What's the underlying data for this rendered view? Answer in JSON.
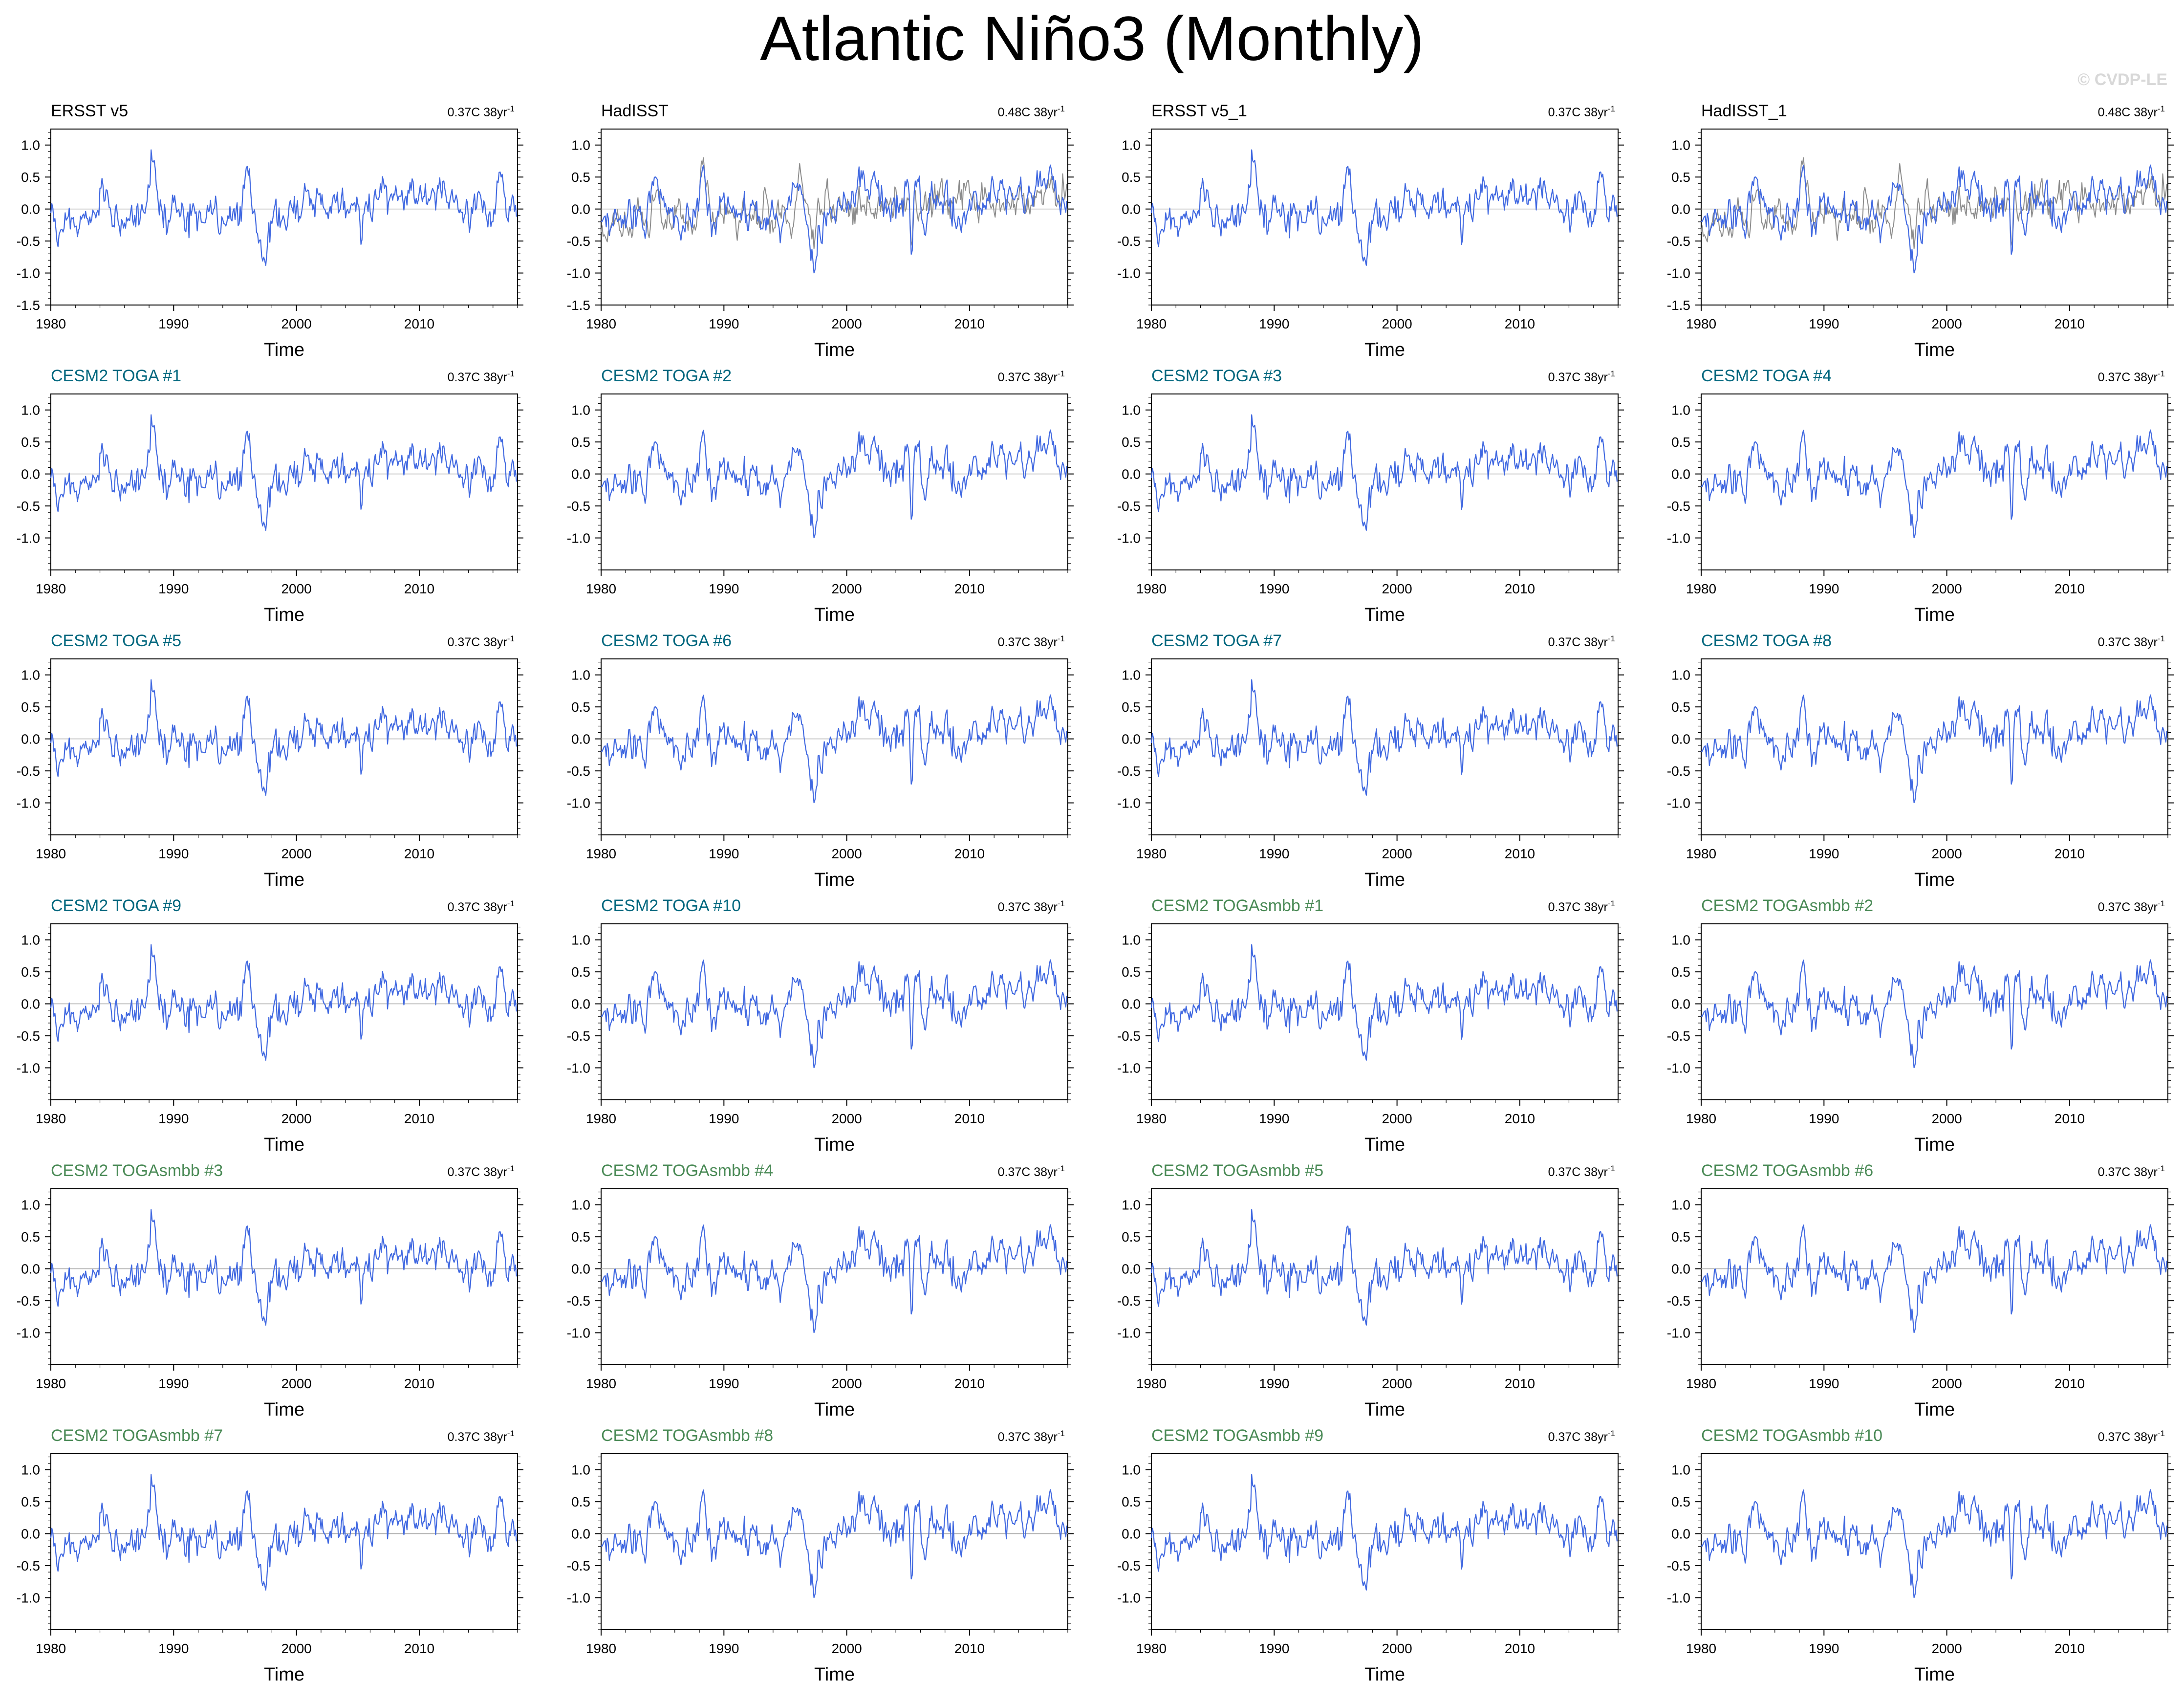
{
  "page": {
    "title": "Atlantic Niño3 (Monthly)",
    "watermark": "© CVDP-LE",
    "colors": {
      "model_line": "#4169e1",
      "obs_line": "#8c8c8c",
      "zero_line": "#a8a8a8",
      "obs_title": "#000000",
      "toga_title": "#00677e",
      "togasmbb_title": "#4a8a56"
    }
  },
  "chart_data": [
    {
      "type": "line",
      "title": "ERSST v5",
      "trend_label": "0.37C 38yr",
      "title_group": "obs",
      "xlabel": "Time",
      "xlim": [
        1980,
        2018
      ],
      "ylim": [
        -1.5,
        1.25
      ],
      "yticks": [
        -1.5,
        -1.0,
        -0.5,
        0.0,
        0.5,
        1.0
      ],
      "xticks": [
        1980,
        1990,
        2000,
        2010
      ],
      "series": [
        {
          "name": "ERSST v5",
          "color": "#4169e1"
        }
      ]
    },
    {
      "type": "line",
      "title": "HadISST",
      "trend_label": "0.48C 38yr",
      "title_group": "obs",
      "xlabel": "Time",
      "xlim": [
        1980,
        2018
      ],
      "ylim": [
        -1.5,
        1.25
      ],
      "yticks": [
        -1.5,
        -1.0,
        -0.5,
        0.0,
        0.5,
        1.0
      ],
      "xticks": [
        1980,
        1990,
        2000,
        2010
      ],
      "series": [
        {
          "color": "#8c8c8c"
        },
        {
          "name": "HadISST",
          "color": "#4169e1"
        }
      ]
    },
    {
      "type": "line",
      "title": "ERSST v5_1",
      "trend_label": "0.37C 38yr",
      "title_group": "obs",
      "xlabel": "Time",
      "xlim": [
        1980,
        2018
      ],
      "ylim": [
        -1.5,
        1.25
      ],
      "yticks": [
        -1.0,
        -0.5,
        0.0,
        0.5,
        1.0
      ],
      "xticks": [
        1980,
        1990,
        2000,
        2010
      ],
      "series": [
        {
          "name": "ERSST v5_1",
          "color": "#4169e1"
        }
      ]
    },
    {
      "type": "line",
      "title": "HadISST_1",
      "trend_label": "0.48C 38yr",
      "title_group": "obs",
      "xlabel": "Time",
      "xlim": [
        1980,
        2018
      ],
      "ylim": [
        -1.5,
        1.25
      ],
      "yticks": [
        -1.5,
        -1.0,
        -0.5,
        0.0,
        0.5,
        1.0
      ],
      "xticks": [
        1980,
        1990,
        2000,
        2010
      ],
      "series": [
        {
          "color": "#8c8c8c"
        },
        {
          "name": "HadISST_1",
          "color": "#4169e1"
        }
      ]
    },
    {
      "type": "line",
      "title": "CESM2 TOGA #1",
      "trend_label": "0.37C 38yr",
      "title_group": "toga",
      "xlabel": "Time",
      "xlim": [
        1980,
        2018
      ],
      "ylim": [
        -1.5,
        1.25
      ],
      "yticks": [
        -1.0,
        -0.5,
        0.0,
        0.5,
        1.0
      ],
      "xticks": [
        1980,
        1990,
        2000,
        2010
      ],
      "series": [
        {
          "color": "#4169e1"
        }
      ]
    },
    {
      "type": "line",
      "title": "CESM2 TOGA #2",
      "trend_label": "0.37C 38yr",
      "title_group": "toga",
      "xlabel": "Time",
      "xlim": [
        1980,
        2018
      ],
      "ylim": [
        -1.5,
        1.25
      ],
      "yticks": [
        -1.0,
        -0.5,
        0.0,
        0.5,
        1.0
      ],
      "xticks": [
        1980,
        1990,
        2000,
        2010
      ],
      "series": [
        {
          "color": "#4169e1"
        }
      ]
    },
    {
      "type": "line",
      "title": "CESM2 TOGA #3",
      "trend_label": "0.37C 38yr",
      "title_group": "toga",
      "xlabel": "Time",
      "xlim": [
        1980,
        2018
      ],
      "ylim": [
        -1.5,
        1.25
      ],
      "yticks": [
        -1.0,
        -0.5,
        0.0,
        0.5,
        1.0
      ],
      "xticks": [
        1980,
        1990,
        2000,
        2010
      ],
      "series": [
        {
          "color": "#4169e1"
        }
      ]
    },
    {
      "type": "line",
      "title": "CESM2 TOGA #4",
      "trend_label": "0.37C 38yr",
      "title_group": "toga",
      "xlabel": "Time",
      "xlim": [
        1980,
        2018
      ],
      "ylim": [
        -1.5,
        1.25
      ],
      "yticks": [
        -1.0,
        -0.5,
        0.0,
        0.5,
        1.0
      ],
      "xticks": [
        1980,
        1990,
        2000,
        2010
      ],
      "series": [
        {
          "color": "#4169e1"
        }
      ]
    },
    {
      "type": "line",
      "title": "CESM2 TOGA #5",
      "trend_label": "0.37C 38yr",
      "title_group": "toga",
      "xlabel": "Time",
      "xlim": [
        1980,
        2018
      ],
      "ylim": [
        -1.5,
        1.25
      ],
      "yticks": [
        -1.0,
        -0.5,
        0.0,
        0.5,
        1.0
      ],
      "xticks": [
        1980,
        1990,
        2000,
        2010
      ],
      "series": [
        {
          "color": "#4169e1"
        }
      ]
    },
    {
      "type": "line",
      "title": "CESM2 TOGA #6",
      "trend_label": "0.37C 38yr",
      "title_group": "toga",
      "xlabel": "Time",
      "xlim": [
        1980,
        2018
      ],
      "ylim": [
        -1.5,
        1.25
      ],
      "yticks": [
        -1.0,
        -0.5,
        0.0,
        0.5,
        1.0
      ],
      "xticks": [
        1980,
        1990,
        2000,
        2010
      ],
      "series": [
        {
          "color": "#4169e1"
        }
      ]
    },
    {
      "type": "line",
      "title": "CESM2 TOGA #7",
      "trend_label": "0.37C 38yr",
      "title_group": "toga",
      "xlabel": "Time",
      "xlim": [
        1980,
        2018
      ],
      "ylim": [
        -1.5,
        1.25
      ],
      "yticks": [
        -1.0,
        -0.5,
        0.0,
        0.5,
        1.0
      ],
      "xticks": [
        1980,
        1990,
        2000,
        2010
      ],
      "series": [
        {
          "color": "#4169e1"
        }
      ]
    },
    {
      "type": "line",
      "title": "CESM2 TOGA #8",
      "trend_label": "0.37C 38yr",
      "title_group": "toga",
      "xlabel": "Time",
      "xlim": [
        1980,
        2018
      ],
      "ylim": [
        -1.5,
        1.25
      ],
      "yticks": [
        -1.0,
        -0.5,
        0.0,
        0.5,
        1.0
      ],
      "xticks": [
        1980,
        1990,
        2000,
        2010
      ],
      "series": [
        {
          "color": "#4169e1"
        }
      ]
    },
    {
      "type": "line",
      "title": "CESM2 TOGA #9",
      "trend_label": "0.37C 38yr",
      "title_group": "toga",
      "xlabel": "Time",
      "xlim": [
        1980,
        2018
      ],
      "ylim": [
        -1.5,
        1.25
      ],
      "yticks": [
        -1.0,
        -0.5,
        0.0,
        0.5,
        1.0
      ],
      "xticks": [
        1980,
        1990,
        2000,
        2010
      ],
      "series": [
        {
          "color": "#4169e1"
        }
      ]
    },
    {
      "type": "line",
      "title": "CESM2 TOGA #10",
      "trend_label": "0.37C 38yr",
      "title_group": "toga",
      "xlabel": "Time",
      "xlim": [
        1980,
        2018
      ],
      "ylim": [
        -1.5,
        1.25
      ],
      "yticks": [
        -1.0,
        -0.5,
        0.0,
        0.5,
        1.0
      ],
      "xticks": [
        1980,
        1990,
        2000,
        2010
      ],
      "series": [
        {
          "color": "#4169e1"
        }
      ]
    },
    {
      "type": "line",
      "title": "CESM2 TOGAsmbb #1",
      "trend_label": "0.37C 38yr",
      "title_group": "togasmbb",
      "xlabel": "Time",
      "xlim": [
        1980,
        2018
      ],
      "ylim": [
        -1.5,
        1.25
      ],
      "yticks": [
        -1.0,
        -0.5,
        0.0,
        0.5,
        1.0
      ],
      "xticks": [
        1980,
        1990,
        2000,
        2010
      ],
      "series": [
        {
          "color": "#4169e1"
        }
      ]
    },
    {
      "type": "line",
      "title": "CESM2 TOGAsmbb #2",
      "trend_label": "0.37C 38yr",
      "title_group": "togasmbb",
      "xlabel": "Time",
      "xlim": [
        1980,
        2018
      ],
      "ylim": [
        -1.5,
        1.25
      ],
      "yticks": [
        -1.0,
        -0.5,
        0.0,
        0.5,
        1.0
      ],
      "xticks": [
        1980,
        1990,
        2000,
        2010
      ],
      "series": [
        {
          "color": "#4169e1"
        }
      ]
    },
    {
      "type": "line",
      "title": "CESM2 TOGAsmbb #3",
      "trend_label": "0.37C 38yr",
      "title_group": "togasmbb",
      "xlabel": "Time",
      "xlim": [
        1980,
        2018
      ],
      "ylim": [
        -1.5,
        1.25
      ],
      "yticks": [
        -1.0,
        -0.5,
        0.0,
        0.5,
        1.0
      ],
      "xticks": [
        1980,
        1990,
        2000,
        2010
      ],
      "series": [
        {
          "color": "#4169e1"
        }
      ]
    },
    {
      "type": "line",
      "title": "CESM2 TOGAsmbb #4",
      "trend_label": "0.37C 38yr",
      "title_group": "togasmbb",
      "xlabel": "Time",
      "xlim": [
        1980,
        2018
      ],
      "ylim": [
        -1.5,
        1.25
      ],
      "yticks": [
        -1.0,
        -0.5,
        0.0,
        0.5,
        1.0
      ],
      "xticks": [
        1980,
        1990,
        2000,
        2010
      ],
      "series": [
        {
          "color": "#4169e1"
        }
      ]
    },
    {
      "type": "line",
      "title": "CESM2 TOGAsmbb #5",
      "trend_label": "0.37C 38yr",
      "title_group": "togasmbb",
      "xlabel": "Time",
      "xlim": [
        1980,
        2018
      ],
      "ylim": [
        -1.5,
        1.25
      ],
      "yticks": [
        -1.0,
        -0.5,
        0.0,
        0.5,
        1.0
      ],
      "xticks": [
        1980,
        1990,
        2000,
        2010
      ],
      "series": [
        {
          "color": "#4169e1"
        }
      ]
    },
    {
      "type": "line",
      "title": "CESM2 TOGAsmbb #6",
      "trend_label": "0.37C 38yr",
      "title_group": "togasmbb",
      "xlabel": "Time",
      "xlim": [
        1980,
        2018
      ],
      "ylim": [
        -1.5,
        1.25
      ],
      "yticks": [
        -1.0,
        -0.5,
        0.0,
        0.5,
        1.0
      ],
      "xticks": [
        1980,
        1990,
        2000,
        2010
      ],
      "series": [
        {
          "color": "#4169e1"
        }
      ]
    },
    {
      "type": "line",
      "title": "CESM2 TOGAsmbb #7",
      "trend_label": "0.37C 38yr",
      "title_group": "togasmbb",
      "xlabel": "Time",
      "xlim": [
        1980,
        2018
      ],
      "ylim": [
        -1.5,
        1.25
      ],
      "yticks": [
        -1.0,
        -0.5,
        0.0,
        0.5,
        1.0
      ],
      "xticks": [
        1980,
        1990,
        2000,
        2010
      ],
      "series": [
        {
          "color": "#4169e1"
        }
      ]
    },
    {
      "type": "line",
      "title": "CESM2 TOGAsmbb #8",
      "trend_label": "0.37C 38yr",
      "title_group": "togasmbb",
      "xlabel": "Time",
      "xlim": [
        1980,
        2018
      ],
      "ylim": [
        -1.5,
        1.25
      ],
      "yticks": [
        -1.0,
        -0.5,
        0.0,
        0.5,
        1.0
      ],
      "xticks": [
        1980,
        1990,
        2000,
        2010
      ],
      "series": [
        {
          "color": "#4169e1"
        }
      ]
    },
    {
      "type": "line",
      "title": "CESM2 TOGAsmbb #9",
      "trend_label": "0.37C 38yr",
      "title_group": "togasmbb",
      "xlabel": "Time",
      "xlim": [
        1980,
        2018
      ],
      "ylim": [
        -1.5,
        1.25
      ],
      "yticks": [
        -1.0,
        -0.5,
        0.0,
        0.5,
        1.0
      ],
      "xticks": [
        1980,
        1990,
        2000,
        2010
      ],
      "series": [
        {
          "color": "#4169e1"
        }
      ]
    },
    {
      "type": "line",
      "title": "CESM2 TOGAsmbb #10",
      "trend_label": "0.37C 38yr",
      "title_group": "togasmbb",
      "xlabel": "Time",
      "xlim": [
        1980,
        2018
      ],
      "ylim": [
        -1.5,
        1.25
      ],
      "yticks": [
        -1.0,
        -0.5,
        0.0,
        0.5,
        1.0
      ],
      "xticks": [
        1980,
        1990,
        2000,
        2010
      ],
      "series": [
        {
          "color": "#4169e1"
        }
      ]
    }
  ]
}
